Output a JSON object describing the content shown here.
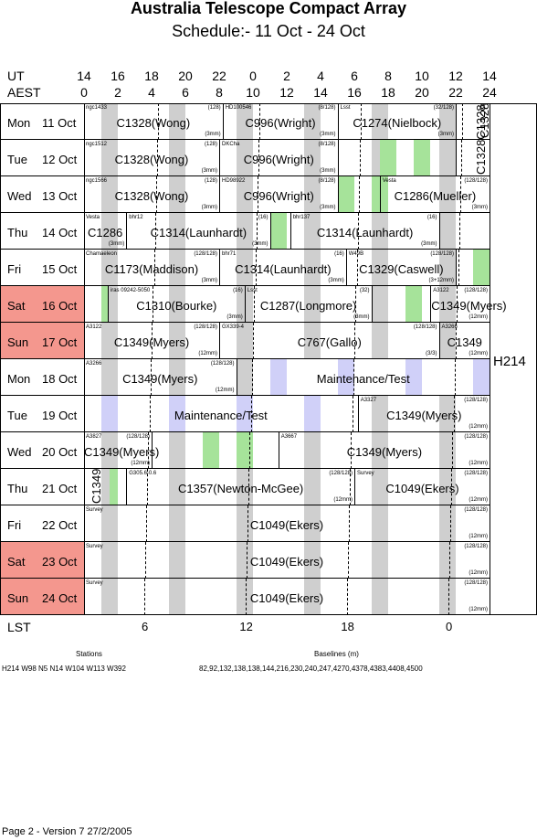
{
  "header": {
    "title": "Australia Telescope Compact Array",
    "subtitle": "Schedule:- 11 Oct - 24 Oct",
    "ut_label": "UT",
    "aest_label": "AEST",
    "ut_ticks": [
      "14",
      "16",
      "18",
      "20",
      "22",
      "0",
      "2",
      "4",
      "6",
      "8",
      "10",
      "12",
      "14"
    ],
    "aest_ticks": [
      "0",
      "2",
      "4",
      "6",
      "8",
      "10",
      "12",
      "14",
      "16",
      "18",
      "20",
      "22",
      "24"
    ]
  },
  "days": [
    {
      "name": "Mon",
      "date": "11 Oct",
      "weekend": false
    },
    {
      "name": "Tue",
      "date": "12 Oct",
      "weekend": false
    },
    {
      "name": "Wed",
      "date": "13 Oct",
      "weekend": false
    },
    {
      "name": "Thu",
      "date": "14 Oct",
      "weekend": false
    },
    {
      "name": "Fri",
      "date": "15 Oct",
      "weekend": false
    },
    {
      "name": "Sat",
      "date": "16 Oct",
      "weekend": true
    },
    {
      "name": "Sun",
      "date": "17 Oct",
      "weekend": true
    },
    {
      "name": "Mon",
      "date": "18 Oct",
      "weekend": false
    },
    {
      "name": "Tue",
      "date": "19 Oct",
      "weekend": false
    },
    {
      "name": "Wed",
      "date": "20 Oct",
      "weekend": false
    },
    {
      "name": "Thu",
      "date": "21 Oct",
      "weekend": false
    },
    {
      "name": "Fri",
      "date": "22 Oct",
      "weekend": false
    },
    {
      "name": "Sat",
      "date": "23 Oct",
      "weekend": true
    },
    {
      "name": "Sun",
      "date": "24 Oct",
      "weekend": true
    }
  ],
  "rows": [
    [
      {
        "s": 0,
        "e": 8.2,
        "source": "ngc1433",
        "counts": "(128)",
        "label": "C1328(Wong)",
        "receiver": "(3mm)"
      },
      {
        "s": 8.2,
        "e": 15,
        "source": "HD100546",
        "counts": "(8/128)",
        "label": "C996(Wright)",
        "receiver": "(3mm)"
      },
      {
        "s": 15,
        "e": 22,
        "source": "Lsst",
        "counts": "(32/128)",
        "label": "C1274(Nielbock)",
        "receiver": "(3mm)"
      },
      {
        "s": 22,
        "e": 24,
        "source": "",
        "counts": "",
        "label": "",
        "receiver": ""
      }
    ],
    [
      {
        "s": 0,
        "e": 8,
        "source": "ngc1512",
        "counts": "(128)",
        "label": "C1328(Wong)",
        "receiver": "(3mm)"
      },
      {
        "s": 8,
        "e": 15,
        "source": "DKCha",
        "counts": "(8/128)",
        "label": "C996(Wright)",
        "receiver": "(3mm)"
      },
      {
        "s": 15,
        "e": 22,
        "source": "",
        "counts": "",
        "label": "",
        "receiver": ""
      },
      {
        "s": 22,
        "e": 24,
        "source": "",
        "counts": "",
        "label": "",
        "receiver": ""
      }
    ],
    [
      {
        "s": 0,
        "e": 8,
        "source": "ngc1566",
        "counts": "(128)",
        "label": "C1328(Wong)",
        "receiver": "(3mm)"
      },
      {
        "s": 8,
        "e": 15,
        "source": "HD98922",
        "counts": "(8/128)",
        "label": "C996(Wright)",
        "receiver": "(3mm)"
      },
      {
        "s": 15,
        "e": 17.5,
        "source": "",
        "counts": "",
        "label": "",
        "receiver": ""
      },
      {
        "s": 17.5,
        "e": 24,
        "source": "Vesta",
        "counts": "(128/128)",
        "label": "C1286(Mueller)",
        "receiver": "(3mm)"
      }
    ],
    [
      {
        "s": 0,
        "e": 2.5,
        "source": "Vesta",
        "counts": "",
        "label": "C1286",
        "receiver": "(3mm)"
      },
      {
        "s": 2.5,
        "e": 11,
        "source": "bhr12",
        "counts": "(16)",
        "label": "C1314(Launhardt)",
        "receiver": "(3mm)"
      },
      {
        "s": 11,
        "e": 12.2,
        "source": "",
        "counts": "",
        "label": "",
        "receiver": ""
      },
      {
        "s": 12.2,
        "e": 21,
        "source": "bhr137",
        "counts": "(16)",
        "label": "C1314(Launhardt)",
        "receiver": "(3mm)"
      },
      {
        "s": 21,
        "e": 24,
        "source": "",
        "counts": "",
        "label": "",
        "receiver": ""
      }
    ],
    [
      {
        "s": 0,
        "e": 8,
        "source": "Chamaeleon",
        "counts": "(128/128)",
        "label": "C1173(Maddison)",
        "receiver": "(3mm)"
      },
      {
        "s": 8,
        "e": 15.5,
        "source": "bhr71",
        "counts": "(16)",
        "label": "C1314(Launhardt)",
        "receiver": "(3mm)"
      },
      {
        "s": 15.5,
        "e": 22,
        "source": "W49B",
        "counts": "(128/128)",
        "label": "C1329(Caswell)",
        "receiver": "(3+12mm)"
      },
      {
        "s": 22,
        "e": 24,
        "source": "",
        "counts": "",
        "label": "",
        "receiver": ""
      }
    ],
    [
      {
        "s": 0,
        "e": 1.4,
        "source": "",
        "counts": "",
        "label": "",
        "receiver": ""
      },
      {
        "s": 1.4,
        "e": 9.5,
        "source": "iras 09242-5050",
        "counts": "(16)",
        "label": "C1310(Bourke)",
        "receiver": "(3mm)"
      },
      {
        "s": 9.5,
        "e": 17,
        "source": "Lsst",
        "counts": "(32)",
        "label": "C1287(Longmore)",
        "receiver": "(3mm)"
      },
      {
        "s": 17,
        "e": 20.5,
        "source": "",
        "counts": "",
        "label": "",
        "receiver": ""
      },
      {
        "s": 20.5,
        "e": 24,
        "source": "A3122",
        "counts": "(128/128)",
        "label": "C1349(Myers)",
        "receiver": "(12mm)"
      }
    ],
    [
      {
        "s": 0,
        "e": 8,
        "source": "A3122",
        "counts": "(128/128)",
        "label": "C1349(Myers)",
        "receiver": "(12mm)"
      },
      {
        "s": 8,
        "e": 21,
        "source": "GX339-4",
        "counts": "(128/128)",
        "label": "C767(Gallo)",
        "receiver": "(3/3)"
      },
      {
        "s": 21,
        "e": 24,
        "source": "A3266",
        "counts": "",
        "label": "C1349",
        "receiver": "(12mm)"
      }
    ],
    [
      {
        "s": 0,
        "e": 9,
        "source": "A3266",
        "counts": "(128/128)",
        "label": "C1349(Myers)",
        "receiver": "(12mm)"
      },
      {
        "s": 9,
        "e": 24,
        "source": "",
        "counts": "",
        "label": "Maintenance/Test",
        "receiver": ""
      }
    ],
    [
      {
        "s": 0,
        "e": 16.2,
        "source": "",
        "counts": "",
        "label": "Maintenance/Test",
        "receiver": ""
      },
      {
        "s": 16.2,
        "e": 24,
        "source": "A3327",
        "counts": "(128/128)",
        "label": "C1349(Myers)",
        "receiver": "(12mm)"
      }
    ],
    [
      {
        "s": 0,
        "e": 4,
        "source": "A3827",
        "counts": "(128/128)",
        "label": "C1349(Myers)",
        "receiver": "(12mm)"
      },
      {
        "s": 4,
        "e": 11.5,
        "source": "",
        "counts": "",
        "label": "",
        "receiver": ""
      },
      {
        "s": 11.5,
        "e": 24,
        "source": "A3667",
        "counts": "(128/128)",
        "label": "C1349(Myers)",
        "receiver": "(12mm)"
      }
    ],
    [
      {
        "s": 0,
        "e": 2.5,
        "source": "",
        "counts": "",
        "label": "",
        "receiver": ""
      },
      {
        "s": 2.5,
        "e": 16,
        "source": "G305.6-0.6",
        "counts": "(128/128)",
        "label": "C1357(Newton-McGee)",
        "receiver": "(12mm)"
      },
      {
        "s": 16,
        "e": 24,
        "source": "Survey",
        "counts": "(128/128)",
        "label": "C1049(Ekers)",
        "receiver": "(12mm)"
      }
    ],
    [
      {
        "s": 0,
        "e": 24,
        "source": "Survey",
        "counts": "(128/128)",
        "label": "C1049(Ekers)",
        "receiver": "(12mm)"
      }
    ],
    [
      {
        "s": 0,
        "e": 24,
        "source": "Survey",
        "counts": "(128/128)",
        "label": "C1049(Ekers)",
        "receiver": "(12mm)"
      }
    ],
    [
      {
        "s": 0,
        "e": 24,
        "source": "Survey",
        "counts": "(128/128)",
        "label": "C1049(Ekers)",
        "receiver": "(12mm)"
      }
    ]
  ],
  "vertical_labels": [
    {
      "row": 0,
      "col": 23.3,
      "text": "C1328"
    },
    {
      "row": 1,
      "col": 23.1,
      "text": "C1328C1328"
    },
    {
      "row": 10,
      "col": 0.3,
      "text": "C1349"
    }
  ],
  "colors": {
    "gray": "#cfcfcf",
    "green": "#a6e39a",
    "lavender": "#d0d0f8",
    "weekend": "#f4978e"
  },
  "config_label": "H214",
  "lst": {
    "label": "LST",
    "ticks": [
      {
        "t": "6",
        "at": 3.6
      },
      {
        "t": "12",
        "at": 9.6
      },
      {
        "t": "18",
        "at": 15.6
      },
      {
        "t": "0",
        "at": 21.6
      }
    ]
  },
  "footer": {
    "stations_title": "Stations",
    "stations": "H214   W98 N5 N14 W104 W113 W392",
    "baselines_title": "Baselines (m)",
    "baselines": "82,92,132,138,138,144,216,230,240,247,4270,4378,4383,4408,4500",
    "page": "Page 2 - Version 7  27/2/2005"
  }
}
